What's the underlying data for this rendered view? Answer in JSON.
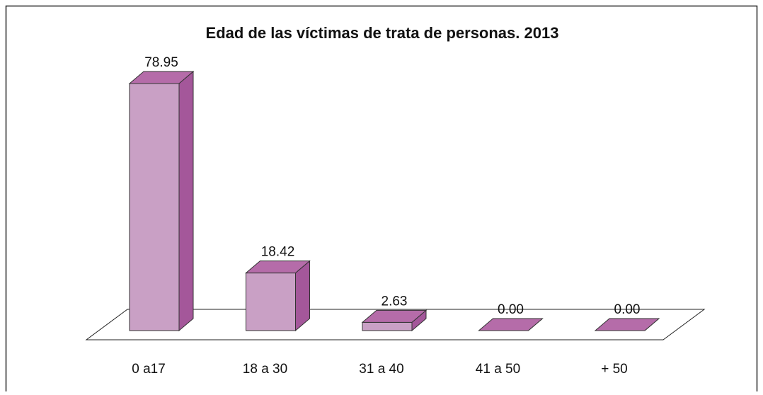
{
  "chart_data": {
    "type": "bar3d",
    "title": "Edad de las víctimas de trata de personas. 2013",
    "categories": [
      "0 a17",
      "18 a 30",
      "31 a 40",
      "41 a 50",
      "+ 50"
    ],
    "values": [
      78.95,
      18.42,
      2.63,
      0,
      0
    ],
    "value_labels": [
      "78.95",
      "18.42",
      "2.63",
      "0.00",
      "0.00"
    ],
    "colors": {
      "front": "#c9a0c5",
      "side": "#a4579a",
      "top": "#b56ca9"
    }
  }
}
